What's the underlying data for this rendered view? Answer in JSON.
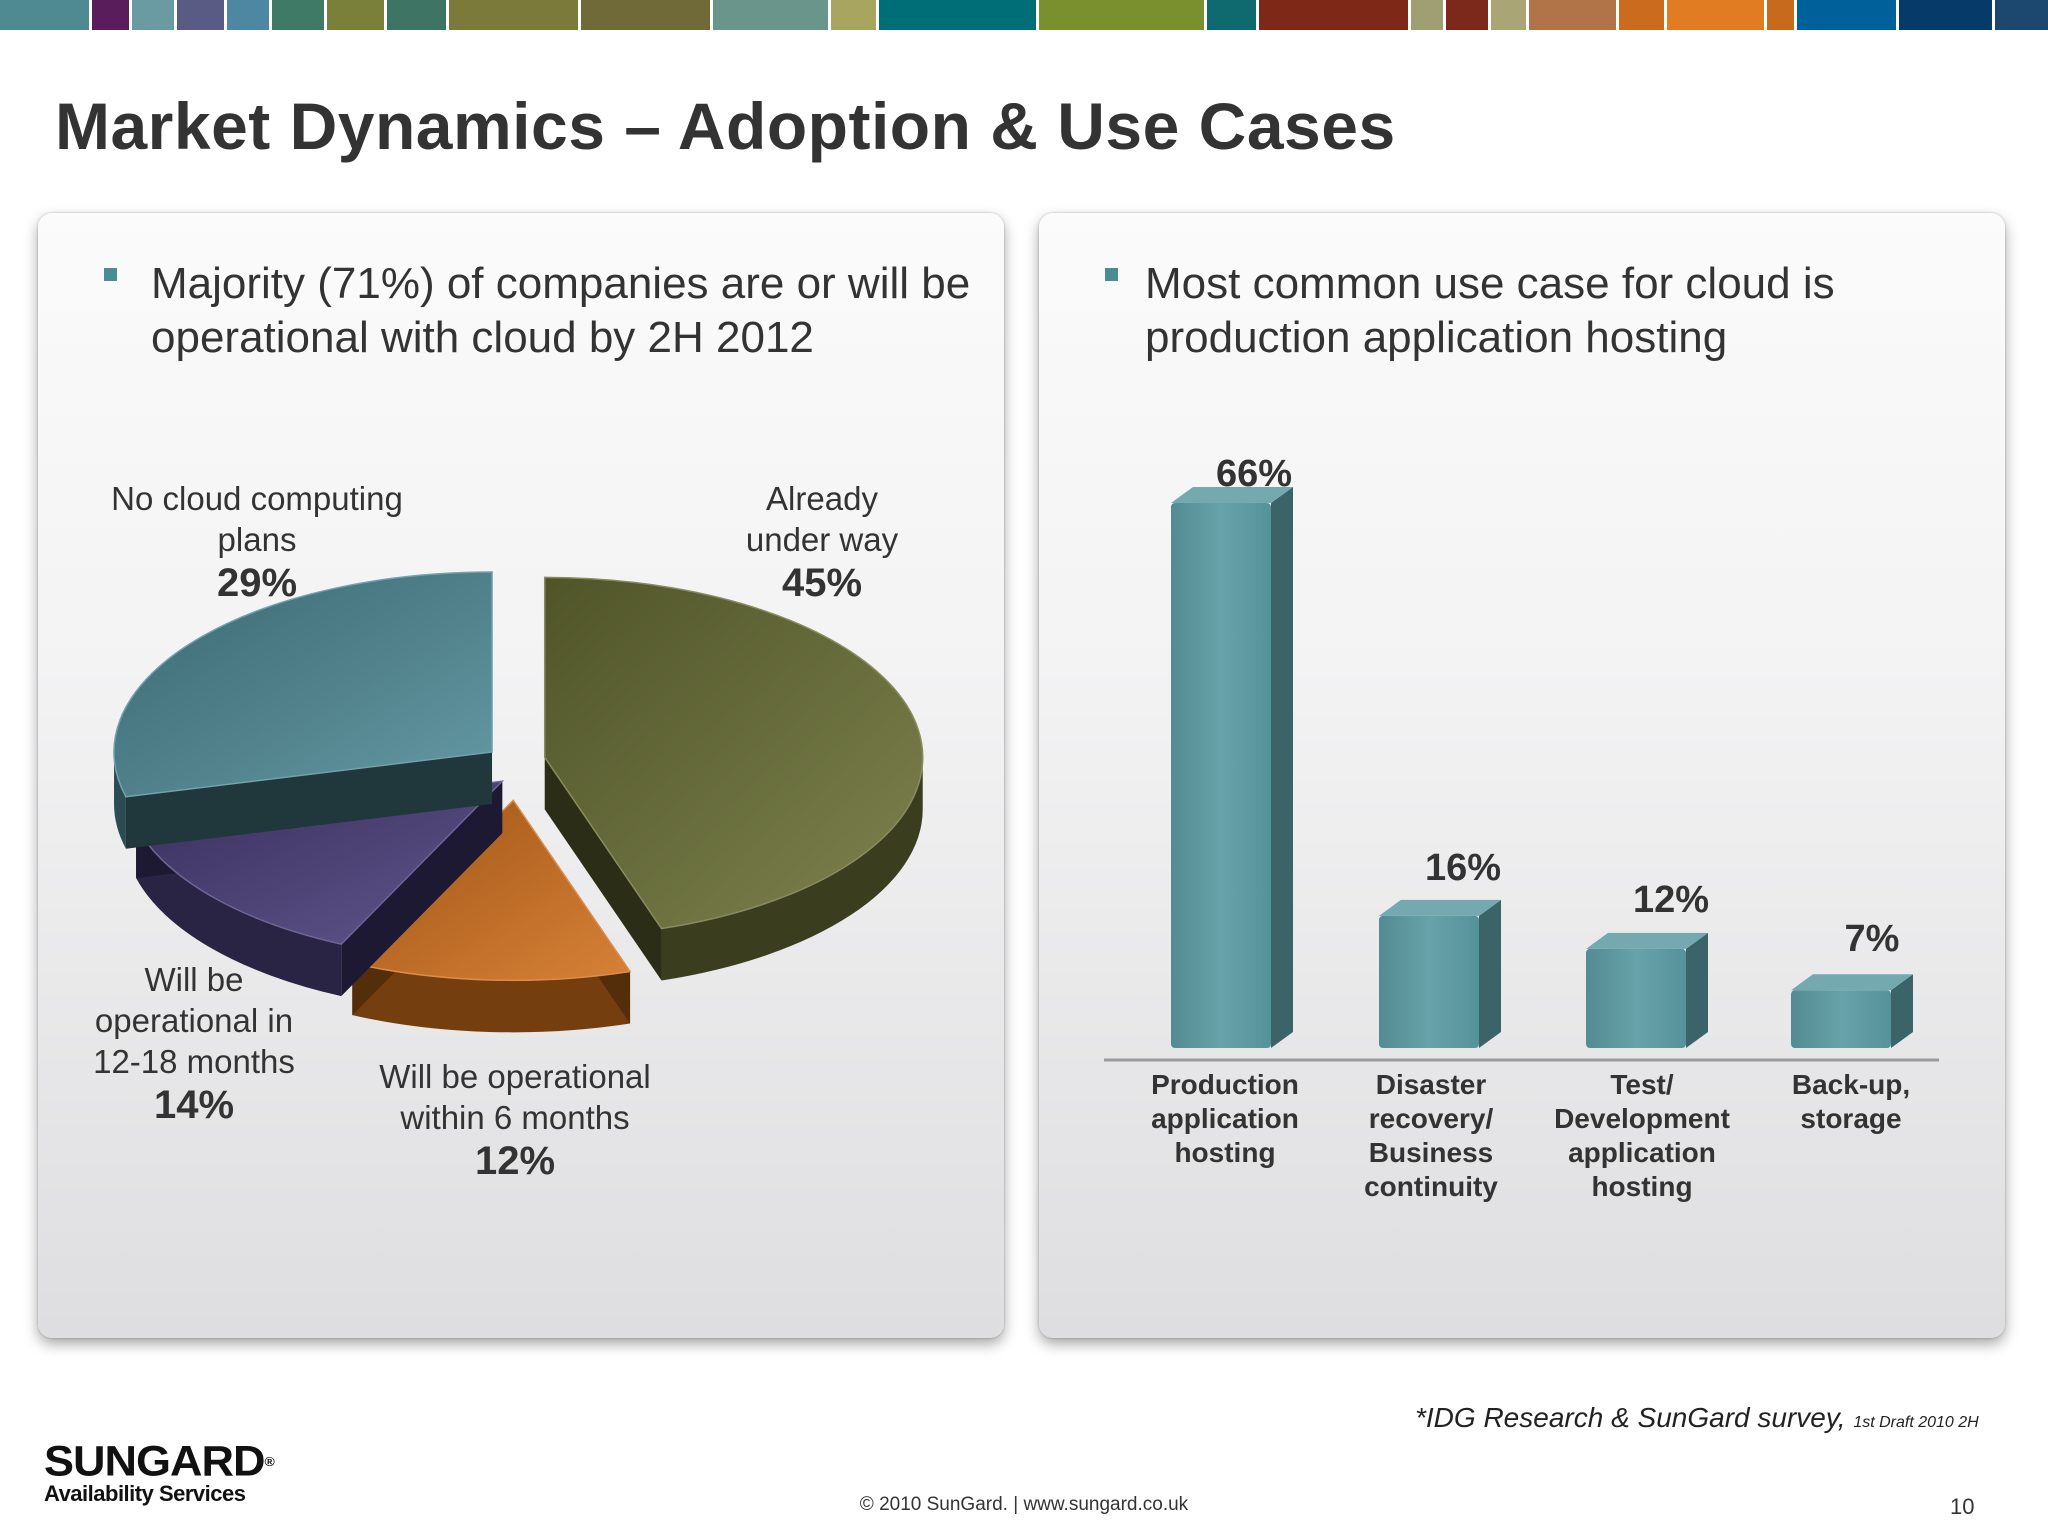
{
  "slide": {
    "title": "Market Dynamics – Adoption & Use Cases",
    "left_bullet": "Majority (71%) of companies are or will be operational with cloud by 2H 2012",
    "right_bullet": "Most common use case for cloud is production application hosting",
    "source": "*IDG Research & SunGard survey,",
    "draft_note": "1st Draft 2010 2H",
    "footer": "© 2010 SunGard.  |  www.sungard.co.uk",
    "page_number": "10",
    "logo_name": "SUNGARD",
    "logo_sub": "Availability Services",
    "logo_mark": "®"
  },
  "pie_labels": {
    "already_label": "Already under way",
    "already_pct": "45%",
    "nocloud_label": "No cloud computing plans",
    "nocloud_pct": "29%",
    "months12_label": "Will be operational in 12-18 months",
    "months12_pct": "14%",
    "months6_label": "Will be operational within 6 months",
    "months6_pct": "12%"
  },
  "bar_labels": {
    "production_value": "66%",
    "production_label": "Production application hosting",
    "disaster_value": "16%",
    "disaster_label": "Disaster recovery/ Business continuity",
    "testdev_value": "12%",
    "testdev_label": "Test/ Development application hosting",
    "backup_value": "7%",
    "backup_label": "Back-up, storage"
  },
  "chart_data": [
    {
      "type": "pie",
      "categories": [
        "Already under way",
        "Will be operational within 6 months",
        "Will be operational in 12-18 months",
        "No cloud computing plans"
      ],
      "values": [
        45,
        12,
        14,
        29
      ],
      "colors": [
        "#6b7136",
        "#d2701c",
        "#4a3f7c",
        "#4f8b97"
      ],
      "title": ""
    },
    {
      "type": "bar",
      "categories": [
        "Production application hosting",
        "Disaster recovery/ Business continuity",
        "Test/ Development application hosting",
        "Back-up, storage"
      ],
      "values": [
        66,
        16,
        12,
        7
      ],
      "color": "#5b9aa2",
      "title": "",
      "xlabel": "",
      "ylabel": "",
      "ylim": [
        0,
        66
      ],
      "grid": false
    }
  ],
  "colors": {
    "accent": "#4a8c94",
    "top_stripe": [
      "#4f8a93",
      "#5a1d5c",
      "#6a9ba3",
      "#5a5b84",
      "#4e87a1",
      "#3f7a66",
      "#7a7f3a",
      "#3e7463",
      "#7b7a3a",
      "#6f6a38",
      "#6a958b",
      "#a8a561",
      "#006e76",
      "#7a8f2d",
      "#0e6a6f",
      "#7e2818",
      "#9f9f73",
      "#7c281b",
      "#a9a574",
      "#b07448",
      "#cb6b1e",
      "#e27c22",
      "#c86a1d",
      "#00609a",
      "#063a69",
      "#1c4870",
      "#d8bf7e"
    ]
  }
}
